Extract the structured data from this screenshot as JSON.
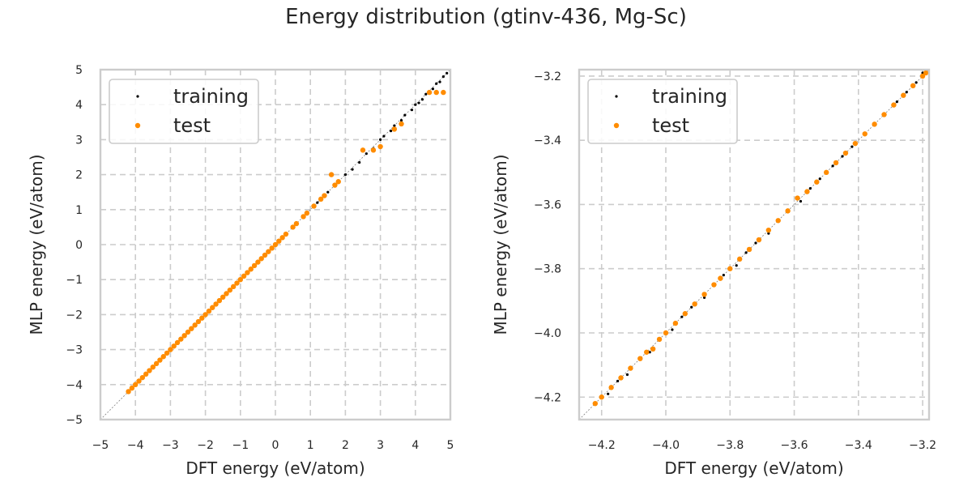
{
  "figure": {
    "title": "Energy distribution (gtinv-436, Mg-Sc)"
  },
  "colors": {
    "training": "#000000",
    "test": "#ff8c00",
    "grid": "#cccccc",
    "frame": "#cccccc",
    "diagonal": "#808080"
  },
  "chart_data": [
    {
      "type": "scatter",
      "xlabel": "DFT energy (eV/atom)",
      "ylabel": "MLP energy (eV/atom)",
      "xlim": [
        -5,
        5
      ],
      "ylim": [
        -5,
        5
      ],
      "xticks": [
        "−5",
        "−4",
        "−3",
        "−2",
        "−1",
        "0",
        "1",
        "2",
        "3",
        "4",
        "5"
      ],
      "yticks": [
        "−5",
        "−4",
        "−3",
        "−2",
        "−1",
        "0",
        "1",
        "2",
        "3",
        "4",
        "5"
      ],
      "grid": true,
      "legend_position": "top-left",
      "diagonal": true,
      "series": [
        {
          "name": "training",
          "color": "#000000",
          "points": [
            [
              -4.2,
              -4.2
            ],
            [
              -4.0,
              -4.0
            ],
            [
              -3.8,
              -3.8
            ],
            [
              -3.5,
              -3.5
            ],
            [
              -3.2,
              -3.2
            ],
            [
              -3.0,
              -3.0
            ],
            [
              -2.8,
              -2.8
            ],
            [
              -2.5,
              -2.5
            ],
            [
              -2.2,
              -2.2
            ],
            [
              -2.0,
              -2.0
            ],
            [
              -1.7,
              -1.7
            ],
            [
              -1.4,
              -1.4
            ],
            [
              -1.2,
              -1.2
            ],
            [
              -1.0,
              -1.0
            ],
            [
              -0.7,
              -0.7
            ],
            [
              -0.4,
              -0.4
            ],
            [
              -0.2,
              -0.2
            ],
            [
              0.0,
              0.0
            ],
            [
              0.3,
              0.3
            ],
            [
              0.6,
              0.6
            ],
            [
              0.9,
              0.9
            ],
            [
              1.2,
              1.2
            ],
            [
              1.5,
              1.5
            ],
            [
              1.8,
              1.8
            ],
            [
              2.0,
              2.0
            ],
            [
              2.2,
              2.15
            ],
            [
              2.4,
              2.35
            ],
            [
              2.6,
              2.6
            ],
            [
              2.8,
              2.75
            ],
            [
              3.0,
              3.0
            ],
            [
              3.1,
              3.1
            ],
            [
              3.3,
              3.25
            ],
            [
              3.4,
              3.4
            ],
            [
              3.6,
              3.55
            ],
            [
              3.7,
              3.7
            ],
            [
              3.9,
              3.85
            ],
            [
              4.0,
              4.0
            ],
            [
              4.1,
              4.05
            ],
            [
              4.2,
              4.15
            ],
            [
              4.3,
              4.3
            ],
            [
              4.4,
              4.35
            ],
            [
              4.5,
              4.45
            ],
            [
              4.6,
              4.6
            ],
            [
              4.7,
              4.65
            ],
            [
              4.8,
              4.8
            ],
            [
              4.9,
              4.9
            ]
          ]
        },
        {
          "name": "test",
          "color": "#ff8c00",
          "points": [
            [
              -4.2,
              -4.2
            ],
            [
              -4.1,
              -4.1
            ],
            [
              -4.0,
              -4.0
            ],
            [
              -3.9,
              -3.9
            ],
            [
              -3.8,
              -3.8
            ],
            [
              -3.7,
              -3.7
            ],
            [
              -3.6,
              -3.6
            ],
            [
              -3.5,
              -3.5
            ],
            [
              -3.4,
              -3.4
            ],
            [
              -3.3,
              -3.3
            ],
            [
              -3.2,
              -3.2
            ],
            [
              -3.1,
              -3.1
            ],
            [
              -3.0,
              -3.0
            ],
            [
              -2.9,
              -2.9
            ],
            [
              -2.8,
              -2.8
            ],
            [
              -2.7,
              -2.7
            ],
            [
              -2.6,
              -2.6
            ],
            [
              -2.5,
              -2.5
            ],
            [
              -2.4,
              -2.4
            ],
            [
              -2.3,
              -2.3
            ],
            [
              -2.2,
              -2.2
            ],
            [
              -2.1,
              -2.1
            ],
            [
              -2.0,
              -2.0
            ],
            [
              -1.9,
              -1.9
            ],
            [
              -1.8,
              -1.8
            ],
            [
              -1.7,
              -1.7
            ],
            [
              -1.6,
              -1.6
            ],
            [
              -1.5,
              -1.5
            ],
            [
              -1.4,
              -1.4
            ],
            [
              -1.3,
              -1.3
            ],
            [
              -1.2,
              -1.2
            ],
            [
              -1.1,
              -1.1
            ],
            [
              -1.0,
              -1.0
            ],
            [
              -0.9,
              -0.9
            ],
            [
              -0.8,
              -0.8
            ],
            [
              -0.7,
              -0.7
            ],
            [
              -0.6,
              -0.6
            ],
            [
              -0.5,
              -0.5
            ],
            [
              -0.4,
              -0.4
            ],
            [
              -0.3,
              -0.3
            ],
            [
              -0.2,
              -0.2
            ],
            [
              -0.1,
              -0.1
            ],
            [
              0.0,
              0.0
            ],
            [
              0.1,
              0.1
            ],
            [
              0.2,
              0.2
            ],
            [
              0.3,
              0.3
            ],
            [
              0.5,
              0.5
            ],
            [
              0.6,
              0.6
            ],
            [
              0.8,
              0.8
            ],
            [
              0.9,
              0.9
            ],
            [
              1.1,
              1.1
            ],
            [
              1.3,
              1.3
            ],
            [
              1.4,
              1.4
            ],
            [
              1.6,
              2.0
            ],
            [
              1.7,
              1.7
            ],
            [
              1.8,
              1.8
            ],
            [
              2.5,
              2.7
            ],
            [
              2.8,
              2.7
            ],
            [
              3.0,
              2.8
            ],
            [
              3.4,
              3.3
            ],
            [
              3.6,
              3.45
            ],
            [
              4.4,
              4.35
            ],
            [
              4.6,
              4.35
            ],
            [
              4.8,
              4.35
            ]
          ]
        }
      ]
    },
    {
      "type": "scatter",
      "xlabel": "DFT energy (eV/atom)",
      "ylabel": "MLP energy (eV/atom)",
      "xlim": [
        -4.27,
        -3.18
      ],
      "ylim": [
        -4.27,
        -3.18
      ],
      "xticks": [
        "−4.2",
        "−4.0",
        "−3.8",
        "−3.6",
        "−3.4",
        "−3.2"
      ],
      "yticks": [
        "−4.2",
        "−4.0",
        "−3.8",
        "−3.6",
        "−3.4",
        "−3.2"
      ],
      "tick_values": [
        -4.2,
        -4.0,
        -3.8,
        -3.6,
        -3.4,
        -3.2
      ],
      "grid": true,
      "legend_position": "top-left",
      "diagonal": true,
      "series": [
        {
          "name": "training",
          "color": "#000000",
          "points": [
            [
              -4.22,
              -4.22
            ],
            [
              -4.18,
              -4.19
            ],
            [
              -4.15,
              -4.15
            ],
            [
              -4.12,
              -4.13
            ],
            [
              -4.08,
              -4.08
            ],
            [
              -4.05,
              -4.06
            ],
            [
              -4.02,
              -4.02
            ],
            [
              -3.98,
              -3.99
            ],
            [
              -3.95,
              -3.95
            ],
            [
              -3.92,
              -3.92
            ],
            [
              -3.88,
              -3.89
            ],
            [
              -3.85,
              -3.85
            ],
            [
              -3.82,
              -3.82
            ],
            [
              -3.78,
              -3.79
            ],
            [
              -3.75,
              -3.75
            ],
            [
              -3.72,
              -3.72
            ],
            [
              -3.68,
              -3.69
            ],
            [
              -3.65,
              -3.65
            ],
            [
              -3.62,
              -3.62
            ],
            [
              -3.58,
              -3.59
            ],
            [
              -3.55,
              -3.55
            ],
            [
              -3.52,
              -3.52
            ],
            [
              -3.48,
              -3.48
            ],
            [
              -3.45,
              -3.45
            ],
            [
              -3.42,
              -3.42
            ],
            [
              -3.38,
              -3.38
            ],
            [
              -3.35,
              -3.35
            ],
            [
              -3.32,
              -3.32
            ],
            [
              -3.28,
              -3.28
            ],
            [
              -3.25,
              -3.25
            ],
            [
              -3.22,
              -3.22
            ],
            [
              -3.2,
              -3.19
            ]
          ]
        },
        {
          "name": "test",
          "color": "#ff8c00",
          "points": [
            [
              -4.22,
              -4.22
            ],
            [
              -4.2,
              -4.2
            ],
            [
              -4.17,
              -4.17
            ],
            [
              -4.14,
              -4.14
            ],
            [
              -4.11,
              -4.11
            ],
            [
              -4.08,
              -4.08
            ],
            [
              -4.06,
              -4.06
            ],
            [
              -4.04,
              -4.05
            ],
            [
              -4.02,
              -4.02
            ],
            [
              -4.0,
              -4.0
            ],
            [
              -3.97,
              -3.97
            ],
            [
              -3.94,
              -3.94
            ],
            [
              -3.91,
              -3.91
            ],
            [
              -3.88,
              -3.88
            ],
            [
              -3.85,
              -3.85
            ],
            [
              -3.83,
              -3.83
            ],
            [
              -3.8,
              -3.8
            ],
            [
              -3.77,
              -3.77
            ],
            [
              -3.74,
              -3.74
            ],
            [
              -3.71,
              -3.71
            ],
            [
              -3.68,
              -3.68
            ],
            [
              -3.65,
              -3.65
            ],
            [
              -3.62,
              -3.62
            ],
            [
              -3.59,
              -3.58
            ],
            [
              -3.56,
              -3.56
            ],
            [
              -3.53,
              -3.53
            ],
            [
              -3.5,
              -3.5
            ],
            [
              -3.47,
              -3.47
            ],
            [
              -3.44,
              -3.44
            ],
            [
              -3.41,
              -3.41
            ],
            [
              -3.38,
              -3.38
            ],
            [
              -3.35,
              -3.35
            ],
            [
              -3.32,
              -3.32
            ],
            [
              -3.29,
              -3.29
            ],
            [
              -3.26,
              -3.26
            ],
            [
              -3.23,
              -3.23
            ],
            [
              -3.2,
              -3.2
            ],
            [
              -3.19,
              -3.19
            ]
          ]
        }
      ]
    }
  ]
}
